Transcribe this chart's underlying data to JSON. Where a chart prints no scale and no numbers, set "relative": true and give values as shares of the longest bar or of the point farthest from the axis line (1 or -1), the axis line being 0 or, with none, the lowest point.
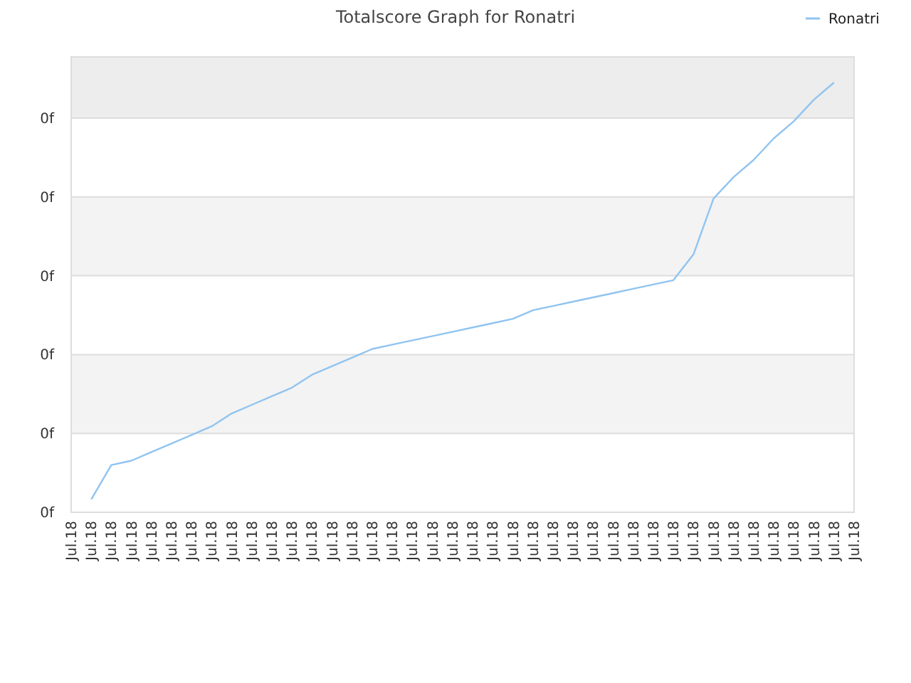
{
  "chart_data": {
    "type": "line",
    "title": "Totalscore Graph for Ronatri",
    "relative": true,
    "categories": [
      "Jul.18",
      "Jul.18",
      "Jul.18",
      "Jul.18",
      "Jul.18",
      "Jul.18",
      "Jul.18",
      "Jul.18",
      "Jul.18",
      "Jul.18",
      "Jul.18",
      "Jul.18",
      "Jul.18",
      "Jul.18",
      "Jul.18",
      "Jul.18",
      "Jul.18",
      "Jul.18",
      "Jul.18",
      "Jul.18",
      "Jul.18",
      "Jul.18",
      "Jul.18",
      "Jul.18",
      "Jul.18",
      "Jul.18",
      "Jul.18",
      "Jul.18",
      "Jul.18",
      "Jul.18",
      "Jul.18",
      "Jul.18",
      "Jul.18",
      "Jul.18",
      "Jul.18",
      "Jul.18",
      "Jul.18",
      "Jul.18",
      "Jul.18",
      "Jul.18"
    ],
    "annotations": [
      "0f",
      "0f",
      "0f",
      "0f",
      "0f",
      "0f"
    ],
    "grid": "y",
    "legend": "top right",
    "marker": "none",
    "line_style": "solid",
    "series": [
      {
        "name": "Ronatri",
        "color": "#90c4f0",
        "values": [
          null,
          0.03,
          0.11,
          0.12,
          0.14,
          0.16,
          0.18,
          0.2,
          0.23,
          0.25,
          0.27,
          0.29,
          0.32,
          0.34,
          0.36,
          0.38,
          0.39,
          0.4,
          0.41,
          0.42,
          0.43,
          0.44,
          0.45,
          0.47,
          0.48,
          0.49,
          0.5,
          0.51,
          0.52,
          0.53,
          0.54,
          0.6,
          0.73,
          0.78,
          0.82,
          0.87,
          0.91,
          0.96,
          1,
          null
        ]
      }
    ]
  }
}
